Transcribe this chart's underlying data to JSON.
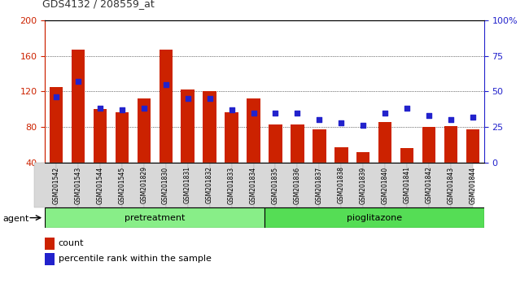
{
  "title": "GDS4132 / 208559_at",
  "samples": [
    "GSM201542",
    "GSM201543",
    "GSM201544",
    "GSM201545",
    "GSM201829",
    "GSM201830",
    "GSM201831",
    "GSM201832",
    "GSM201833",
    "GSM201834",
    "GSM201835",
    "GSM201836",
    "GSM201837",
    "GSM201838",
    "GSM201839",
    "GSM201840",
    "GSM201841",
    "GSM201842",
    "GSM201843",
    "GSM201844"
  ],
  "counts": [
    125,
    167,
    100,
    97,
    112,
    167,
    122,
    120,
    97,
    112,
    83,
    83,
    77,
    57,
    52,
    86,
    56,
    80,
    81,
    77
  ],
  "percentile_ranks": [
    46,
    57,
    38,
    37,
    38,
    55,
    45,
    45,
    37,
    35,
    35,
    35,
    30,
    28,
    26,
    35,
    38,
    33,
    30,
    32
  ],
  "bar_color": "#cc2200",
  "dot_color": "#2222cc",
  "ylim_left": [
    40,
    200
  ],
  "ylim_right": [
    0,
    100
  ],
  "yticks_left": [
    40,
    80,
    120,
    160,
    200
  ],
  "yticks_right": [
    0,
    25,
    50,
    75,
    100
  ],
  "yticklabels_right": [
    "0",
    "25",
    "50",
    "75",
    "100%"
  ],
  "grid_color": "#000000",
  "plot_bg_color": "#ffffff",
  "fig_bg_color": "#ffffff",
  "xtick_bg_color": "#d8d8d8",
  "agent_label": "agent",
  "groups": [
    {
      "label": "pretreatment",
      "start": 0,
      "end": 9,
      "color": "#88ee88"
    },
    {
      "label": "pioglitazone",
      "start": 10,
      "end": 19,
      "color": "#55dd55"
    }
  ],
  "legend_count_label": "count",
  "legend_pct_label": "percentile rank within the sample",
  "axis_color_left": "#cc2200",
  "axis_color_right": "#2222cc",
  "bar_width": 0.6
}
